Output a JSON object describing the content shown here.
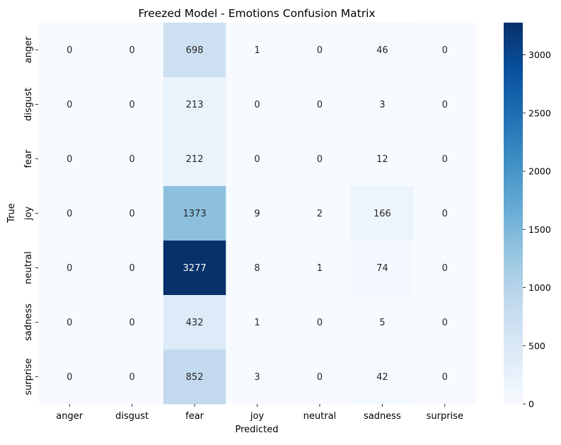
{
  "chart_data": {
    "type": "heatmap",
    "title": "Freezed Model - Emotions Confusion Matrix",
    "xlabel": "Predicted",
    "ylabel": "True",
    "x_categories": [
      "anger",
      "disgust",
      "fear",
      "joy",
      "neutral",
      "sadness",
      "surprise"
    ],
    "y_categories": [
      "anger",
      "disgust",
      "fear",
      "joy",
      "neutral",
      "sadness",
      "surprise"
    ],
    "values": [
      [
        0,
        0,
        698,
        1,
        0,
        46,
        0
      ],
      [
        0,
        0,
        213,
        0,
        0,
        3,
        0
      ],
      [
        0,
        0,
        212,
        0,
        0,
        12,
        0
      ],
      [
        0,
        0,
        1373,
        9,
        2,
        166,
        0
      ],
      [
        0,
        0,
        3277,
        8,
        1,
        74,
        0
      ],
      [
        0,
        0,
        432,
        1,
        0,
        5,
        0
      ],
      [
        0,
        0,
        852,
        3,
        0,
        42,
        0
      ]
    ],
    "colormap": "Blues",
    "colorbar": {
      "min": 0,
      "max": 3277,
      "ticks": [
        0,
        500,
        1000,
        1500,
        2000,
        2500,
        3000
      ],
      "tick_labels": [
        "0",
        "500",
        "1000",
        "1500",
        "2000",
        "2500",
        "3000"
      ]
    }
  }
}
